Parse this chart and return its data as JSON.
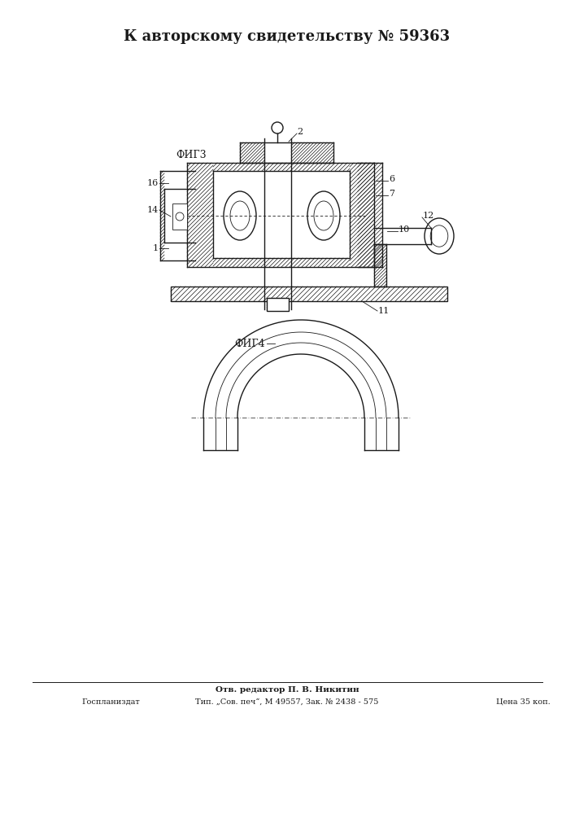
{
  "title": "К авторскому свидетельству № 59363",
  "title_fontsize": 13,
  "fig3_label": "ФИГ3",
  "fig4_label": "ФИГ4",
  "footer_line1": "Отв. редактор П. В. Никитин",
  "footer_left": "Госпланиздат",
  "footer_center": "Тип. „Сов. печ“, М 49557, Зак. № 2438 - 575",
  "footer_right": "Цена 35 коп.",
  "bg_color": "#ffffff",
  "line_color": "#1a1a1a"
}
